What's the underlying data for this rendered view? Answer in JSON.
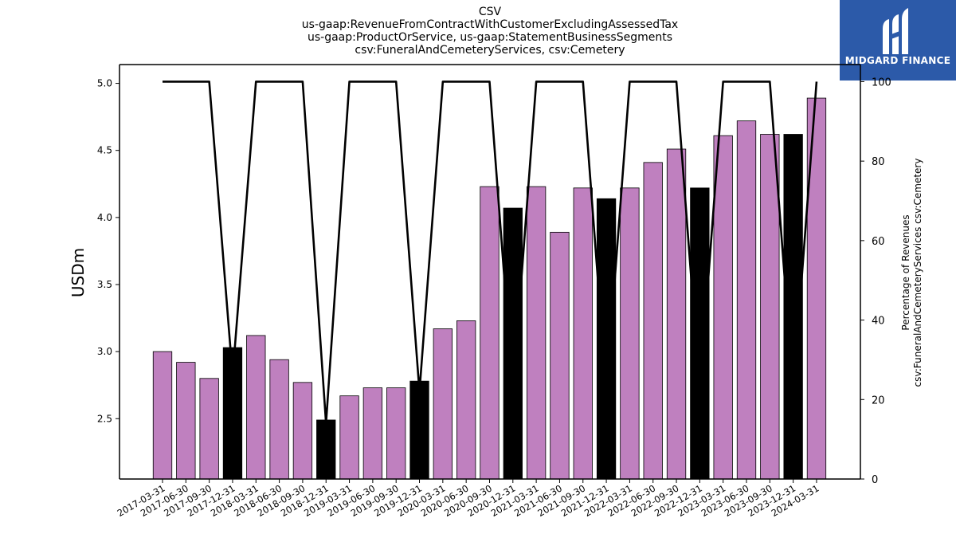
{
  "chart_data": {
    "type": "bar",
    "title_lines": [
      "CSV",
      "us-gaap:RevenueFromContractWithCustomerExcludingAssessedTax",
      "us-gaap:ProductOrService, us-gaap:StatementBusinessSegments",
      "csv:FuneralAndCemeteryServices, csv:Cemetery"
    ],
    "ylabel": "USDm",
    "y2label_lines": [
      "Percentage of Revenues",
      "csv:FuneralAndCemeteryServices csv:Cemetery"
    ],
    "ylim": [
      2.05,
      5.14
    ],
    "y2lim": [
      0,
      104.3
    ],
    "yticks": [
      "2.5",
      "3.0",
      "3.5",
      "4.0",
      "4.5",
      "5.0"
    ],
    "y2ticks": [
      "0",
      "20",
      "40",
      "60",
      "80",
      "100"
    ],
    "categories": [
      "2017-03-31",
      "2017-06-30",
      "2017-09-30",
      "2017-12-31",
      "2018-03-31",
      "2018-06-30",
      "2018-09-30",
      "2018-12-31",
      "2019-03-31",
      "2019-06-30",
      "2019-09-30",
      "2019-12-31",
      "2020-03-31",
      "2020-06-30",
      "2020-09-30",
      "2020-12-31",
      "2021-03-31",
      "2021-06-30",
      "2021-09-30",
      "2021-12-31",
      "2022-03-31",
      "2022-06-30",
      "2022-09-30",
      "2022-12-31",
      "2023-03-31",
      "2023-06-30",
      "2023-09-30",
      "2023-12-31",
      "2024-03-31"
    ],
    "values": [
      3.0,
      2.92,
      2.8,
      3.03,
      3.12,
      2.94,
      2.77,
      2.49,
      2.67,
      2.73,
      2.73,
      2.78,
      3.17,
      3.23,
      4.23,
      4.07,
      4.23,
      3.89,
      4.22,
      4.14,
      4.22,
      4.41,
      4.51,
      4.22,
      4.61,
      4.72,
      4.62,
      4.62,
      4.89
    ],
    "bar_colors": [
      "#bf80bf",
      "#bf80bf",
      "#bf80bf",
      "#000000",
      "#bf80bf",
      "#bf80bf",
      "#bf80bf",
      "#000000",
      "#bf80bf",
      "#bf80bf",
      "#bf80bf",
      "#000000",
      "#bf80bf",
      "#bf80bf",
      "#bf80bf",
      "#000000",
      "#bf80bf",
      "#bf80bf",
      "#bf80bf",
      "#000000",
      "#bf80bf",
      "#bf80bf",
      "#bf80bf",
      "#000000",
      "#bf80bf",
      "#bf80bf",
      "#bf80bf",
      "#000000",
      "#bf80bf"
    ],
    "percentage": [
      100,
      100,
      100,
      26,
      100,
      100,
      100,
      14,
      100,
      100,
      100,
      22,
      100,
      100,
      100,
      22,
      100,
      100,
      100,
      22,
      100,
      100,
      100,
      22,
      100,
      100,
      100,
      22,
      100
    ],
    "line_color": "#000000"
  },
  "logo": {
    "text": "MIDGARD FINANCE",
    "background": "#2c5aa9"
  }
}
